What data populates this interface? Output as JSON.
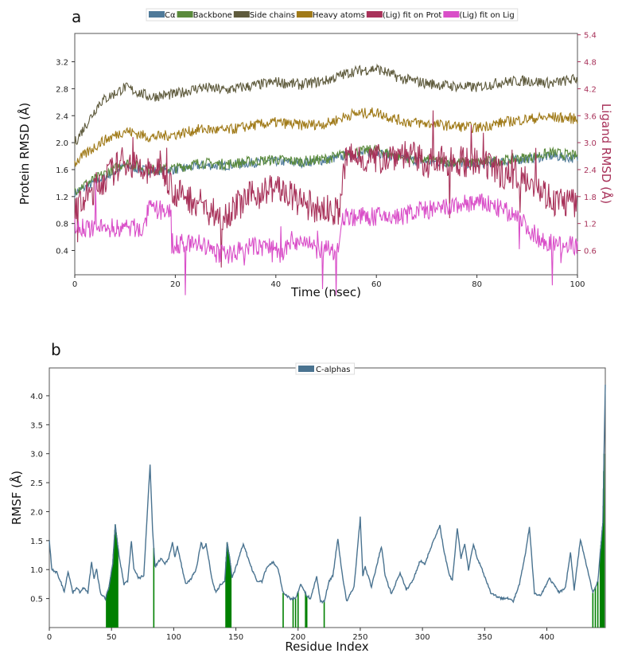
{
  "chart_data": [
    {
      "type": "line",
      "panel_label": "a",
      "xlabel": "Time (nsec)",
      "ylabel": "Protein RMSD (Å)",
      "ylabel_right": "Ligand RMSD (Å)",
      "xlim": [
        0,
        100
      ],
      "ylim": [
        0.04,
        3.62
      ],
      "ylim_right": [
        0.06,
        5.43
      ],
      "xticks": [
        "0",
        "20",
        "40",
        "60",
        "80",
        "100"
      ],
      "yticks": [
        "0.4",
        "0.8",
        "1.2",
        "1.6",
        "2.0",
        "2.4",
        "2.8",
        "3.2"
      ],
      "yticks_right": [
        "0.6",
        "1.2",
        "1.8",
        "2.4",
        "3.0",
        "3.6",
        "4.2",
        "4.8",
        "5.4"
      ],
      "legend_position": "top-center",
      "series": [
        {
          "name": "Cα",
          "color": "#4f7a9a",
          "axis": "left",
          "x": [
            0,
            5,
            10,
            15,
            20,
            25,
            30,
            35,
            40,
            45,
            50,
            55,
            60,
            65,
            70,
            75,
            80,
            85,
            90,
            95,
            100
          ],
          "y": [
            1.25,
            1.45,
            1.65,
            1.58,
            1.6,
            1.66,
            1.66,
            1.7,
            1.72,
            1.7,
            1.74,
            1.82,
            1.86,
            1.76,
            1.72,
            1.7,
            1.68,
            1.72,
            1.76,
            1.8,
            1.76
          ]
        },
        {
          "name": "Backbone",
          "color": "#5a8a3c",
          "axis": "left",
          "x": [
            0,
            5,
            10,
            15,
            20,
            25,
            30,
            35,
            40,
            45,
            50,
            55,
            60,
            65,
            70,
            75,
            80,
            85,
            90,
            95,
            100
          ],
          "y": [
            1.3,
            1.5,
            1.7,
            1.6,
            1.62,
            1.7,
            1.68,
            1.72,
            1.75,
            1.72,
            1.76,
            1.85,
            1.9,
            1.78,
            1.74,
            1.72,
            1.7,
            1.74,
            1.78,
            1.85,
            1.8
          ]
        },
        {
          "name": "Side chains",
          "color": "#5e5a3c",
          "axis": "left",
          "x": [
            0,
            5,
            10,
            15,
            20,
            25,
            30,
            35,
            40,
            45,
            50,
            55,
            60,
            65,
            70,
            75,
            80,
            85,
            90,
            95,
            100
          ],
          "y": [
            2.0,
            2.6,
            2.82,
            2.68,
            2.72,
            2.82,
            2.78,
            2.84,
            2.9,
            2.86,
            2.92,
            3.05,
            3.1,
            2.95,
            2.88,
            2.84,
            2.82,
            2.9,
            2.92,
            2.88,
            2.95
          ]
        },
        {
          "name": "Heavy atoms",
          "color": "#a07a18",
          "axis": "left",
          "x": [
            0,
            5,
            10,
            15,
            20,
            25,
            30,
            35,
            40,
            45,
            50,
            55,
            60,
            65,
            70,
            75,
            80,
            85,
            90,
            95,
            100
          ],
          "y": [
            1.7,
            2.0,
            2.18,
            2.08,
            2.12,
            2.2,
            2.18,
            2.25,
            2.3,
            2.26,
            2.28,
            2.42,
            2.45,
            2.32,
            2.28,
            2.25,
            2.22,
            2.3,
            2.35,
            2.38,
            2.35
          ]
        },
        {
          "name": "(Lig) fit on Prot",
          "color": "#a8325a",
          "axis": "right",
          "x": [
            0,
            5,
            10,
            14,
            17,
            20,
            25,
            29,
            35,
            40,
            45,
            50,
            52.5,
            54,
            60,
            65,
            70,
            75,
            80,
            85,
            90,
            95,
            100
          ],
          "y": [
            1.5,
            2.1,
            2.62,
            2.32,
            2.48,
            1.88,
            1.65,
            1.35,
            1.8,
            2.02,
            1.65,
            1.5,
            1.45,
            2.7,
            2.62,
            2.78,
            2.55,
            2.62,
            2.55,
            2.32,
            2.25,
            1.72,
            1.65
          ]
        },
        {
          "name": "(Lig) fit on Lig",
          "color": "#d94ec8",
          "axis": "right",
          "x": [
            0,
            14,
            14.5,
            19,
            19.5,
            25,
            28,
            30,
            35,
            40,
            41,
            43,
            45,
            48,
            52.5,
            53,
            60,
            65,
            68,
            72,
            78,
            82,
            88,
            92,
            95,
            100
          ],
          "y": [
            1.1,
            1.1,
            1.5,
            1.5,
            0.75,
            0.75,
            0.55,
            0.5,
            0.68,
            0.68,
            0.45,
            0.82,
            0.82,
            0.62,
            0.6,
            1.35,
            1.35,
            1.35,
            1.5,
            1.5,
            1.65,
            1.65,
            1.35,
            0.9,
            0.75,
            0.72
          ]
        }
      ]
    },
    {
      "type": "line",
      "panel_label": "b",
      "xlabel": "Residue Index",
      "ylabel": "RMSF (Å)",
      "xlim": [
        0,
        447
      ],
      "ylim": [
        0,
        4.48
      ],
      "xticks": [
        "0",
        "50",
        "100",
        "150",
        "200",
        "250",
        "300",
        "350",
        "400"
      ],
      "yticks": [
        "0.5",
        "1.0",
        "1.5",
        "2.0",
        "2.5",
        "3.0",
        "3.5",
        "4.0"
      ],
      "legend_position": "top-center",
      "series": [
        {
          "name": "C-alphas",
          "color": "#4a7390",
          "x": [
            0,
            2,
            6,
            9,
            12,
            15,
            19,
            22,
            25,
            28,
            31,
            34,
            36,
            38,
            41,
            45,
            48,
            51,
            53,
            56,
            60,
            63,
            66,
            68,
            72,
            76,
            81,
            83,
            85,
            90,
            93,
            96,
            99,
            101,
            103,
            108,
            110,
            114,
            118,
            122,
            124,
            126,
            128,
            131,
            134,
            138,
            141,
            143,
            145,
            147,
            151,
            156,
            159,
            163,
            167,
            171,
            175,
            180,
            184,
            188,
            194,
            198,
            202,
            207,
            210,
            215,
            218,
            221,
            225,
            228,
            232,
            235,
            239,
            245,
            250,
            252,
            254,
            259,
            267,
            270,
            275,
            282,
            287,
            292,
            298,
            302,
            307,
            314,
            318,
            321,
            324,
            328,
            331,
            334,
            337,
            341,
            344,
            348,
            355,
            363,
            368,
            373,
            378,
            383,
            386,
            390,
            395,
            402,
            410,
            415,
            419,
            422,
            427,
            437,
            441,
            445,
            447
          ],
          "y": [
            1.5,
            1.0,
            0.95,
            0.8,
            0.62,
            0.97,
            0.6,
            0.7,
            0.6,
            0.7,
            0.6,
            1.13,
            0.85,
            1.0,
            0.6,
            0.5,
            0.7,
            1.1,
            1.77,
            1.25,
            0.75,
            0.8,
            1.5,
            1.0,
            0.85,
            0.9,
            2.83,
            1.7,
            1.05,
            1.2,
            1.1,
            1.2,
            1.47,
            1.2,
            1.4,
            0.9,
            0.75,
            0.85,
            1.0,
            1.47,
            1.35,
            1.45,
            1.2,
            0.8,
            0.6,
            0.75,
            0.8,
            1.47,
            1.2,
            0.85,
            1.1,
            1.45,
            1.25,
            1.0,
            0.8,
            0.8,
            1.05,
            1.13,
            1.0,
            0.6,
            0.5,
            0.5,
            0.75,
            0.55,
            0.5,
            0.88,
            0.45,
            0.45,
            0.8,
            0.9,
            1.53,
            1.0,
            0.45,
            0.7,
            1.9,
            0.9,
            1.05,
            0.7,
            1.4,
            0.9,
            0.58,
            0.95,
            0.65,
            0.8,
            1.15,
            1.1,
            1.4,
            1.75,
            1.25,
            0.95,
            0.8,
            1.72,
            1.2,
            1.45,
            1.0,
            1.45,
            1.2,
            1.0,
            0.6,
            0.5,
            0.52,
            0.45,
            0.75,
            1.3,
            1.73,
            0.6,
            0.55,
            0.85,
            0.6,
            0.7,
            1.3,
            0.65,
            1.52,
            0.6,
            0.8,
            1.8,
            4.2
          ]
        },
        {
          "name": "ligand contacts",
          "color": "#008000",
          "type": "bars",
          "residues": [
            46,
            47,
            48,
            49,
            50,
            51,
            52,
            53,
            54,
            55,
            84,
            142,
            143,
            144,
            145,
            146,
            188,
            196,
            198,
            200,
            206,
            207,
            221,
            437,
            439,
            441,
            443,
            444,
            445,
            446
          ]
        }
      ]
    }
  ]
}
